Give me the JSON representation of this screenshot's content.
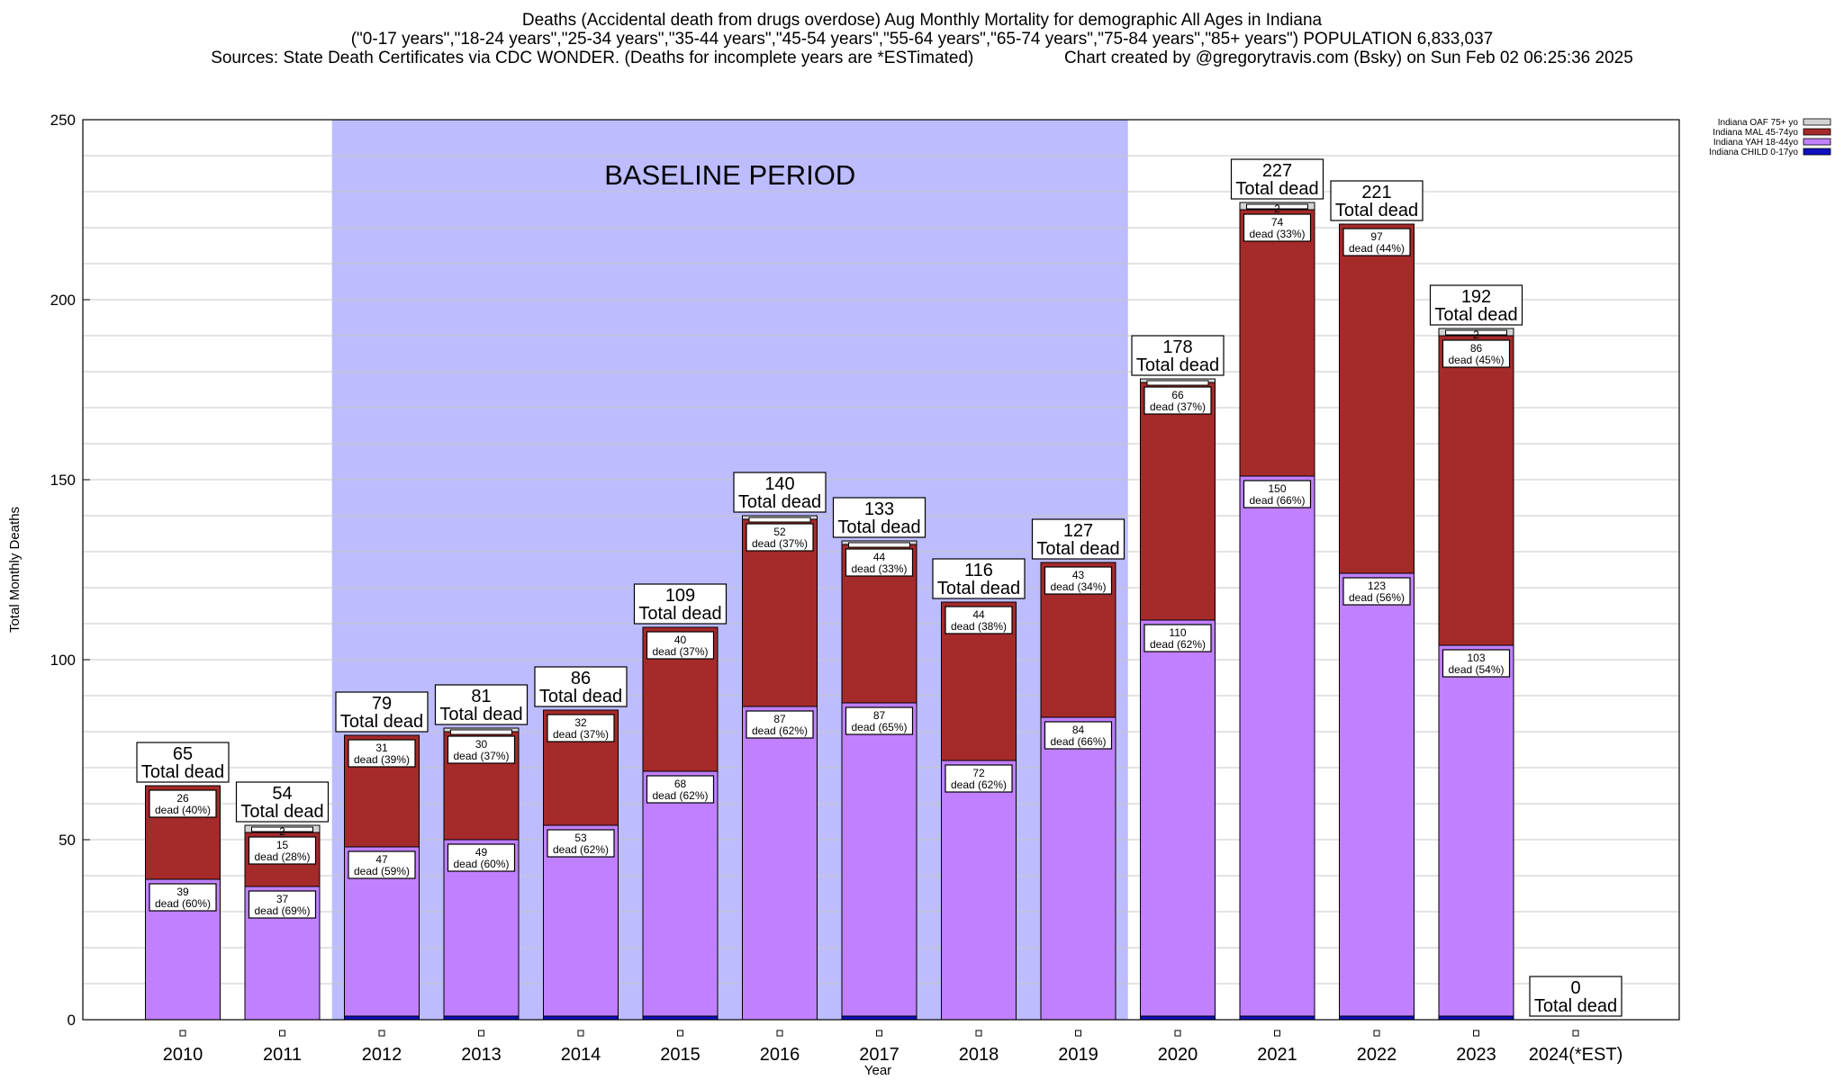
{
  "chart_data": {
    "type": "bar",
    "stacked": true,
    "title": "Deaths (Accidental death from drugs overdose) Aug Monthly Mortality for demographic All Ages in Indiana",
    "subtitle": "(\"0-17 years\",\"18-24 years\",\"25-34 years\",\"35-44 years\",\"45-54 years\",\"55-64 years\",\"65-74 years\",\"75-84 years\",\"85+ years\") POPULATION 6,833,037",
    "source": "Sources: State Death Certificates via CDC WONDER. (Deaths for incomplete years are *ESTimated)",
    "credit": "Chart created by @gregorytravis.com (Bsky) on Sun Feb 02 06:25:36 2025",
    "xlabel": "Year",
    "ylabel": "Total Monthly Deaths",
    "ylim": [
      0,
      250
    ],
    "yticks": [
      0,
      50,
      100,
      150,
      200,
      250
    ],
    "grid": true,
    "legend_position": "top-right",
    "annotation": "BASELINE PERIOD",
    "baseline_range": [
      "2012",
      "2019"
    ],
    "categories": [
      "2010",
      "2011",
      "2012",
      "2013",
      "2014",
      "2015",
      "2016",
      "2017",
      "2018",
      "2019",
      "2020",
      "2021",
      "2022",
      "2023",
      "2024(*EST)"
    ],
    "series": [
      {
        "name": "Indiana CHILD 0-17yo",
        "color": "#1010c0",
        "values": [
          0,
          0,
          1,
          1,
          1,
          1,
          0,
          1,
          0,
          0,
          1,
          1,
          1,
          1,
          0
        ]
      },
      {
        "name": "Indiana YAH 18-44yo",
        "color": "#c080ff",
        "values": [
          39,
          37,
          47,
          49,
          53,
          68,
          87,
          87,
          72,
          84,
          110,
          150,
          123,
          103,
          0
        ]
      },
      {
        "name": "Indiana MAL 45-74yo",
        "color": "#a52a2a",
        "values": [
          26,
          15,
          31,
          30,
          32,
          40,
          52,
          44,
          44,
          43,
          66,
          74,
          97,
          86,
          0
        ]
      },
      {
        "name": "Indiana OAF 75+ yo",
        "color": "#d3d3d3",
        "values": [
          0,
          2,
          0,
          1,
          0,
          0,
          1,
          1,
          0,
          0,
          1,
          2,
          0,
          2,
          0
        ]
      }
    ],
    "totals": [
      65,
      54,
      79,
      81,
      86,
      109,
      140,
      133,
      116,
      127,
      178,
      227,
      221,
      192,
      0
    ],
    "yah_labels": [
      "dead (60%)",
      "dead (69%)",
      "dead (59%)",
      "dead (60%)",
      "dead (62%)",
      "dead (62%)",
      "dead (62%)",
      "dead (65%)",
      "dead (62%)",
      "dead (66%)",
      "dead (62%)",
      "dead (66%)",
      "dead (56%)",
      "dead (54%)",
      ""
    ],
    "mal_labels": [
      "dead (40%)",
      "dead (28%)",
      "dead (39%)",
      "dead (37%)",
      "dead (37%)",
      "dead (37%)",
      "dead (37%)",
      "dead (33%)",
      "dead (38%)",
      "dead (34%)",
      "dead (37%)",
      "dead (33%)",
      "dead (44%)",
      "dead (45%)",
      ""
    ],
    "oaf_labels": [
      "",
      "2",
      "",
      "",
      "",
      "",
      "",
      "",
      "",
      "",
      "",
      "2",
      "",
      "2",
      ""
    ],
    "total_suffix": "Total dead"
  }
}
